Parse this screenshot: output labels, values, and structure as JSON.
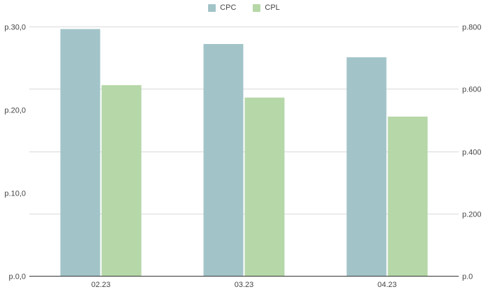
{
  "chart_data": {
    "type": "bar",
    "categories": [
      "02.23",
      "03.23",
      "04.23"
    ],
    "series": [
      {
        "name": "CPC",
        "axis": "left",
        "color": "#a2c4c9",
        "values": [
          29.7,
          27.9,
          26.3
        ]
      },
      {
        "name": "CPL",
        "axis": "right",
        "color": "#b6d7a8",
        "values": [
          612,
          572,
          511
        ]
      }
    ],
    "y_left": {
      "ticks": [
        "p.0,0",
        "p.10,0",
        "p.20,0",
        "p.30,0"
      ],
      "ylim": [
        0,
        30
      ]
    },
    "y_right": {
      "ticks": [
        "p.0",
        "p.200",
        "p.400",
        "p.600",
        "p.800"
      ],
      "ylim": [
        0,
        800
      ]
    },
    "legend_position": "top-center",
    "grid": true,
    "title": "",
    "xlabel": "",
    "ylabel": ""
  }
}
